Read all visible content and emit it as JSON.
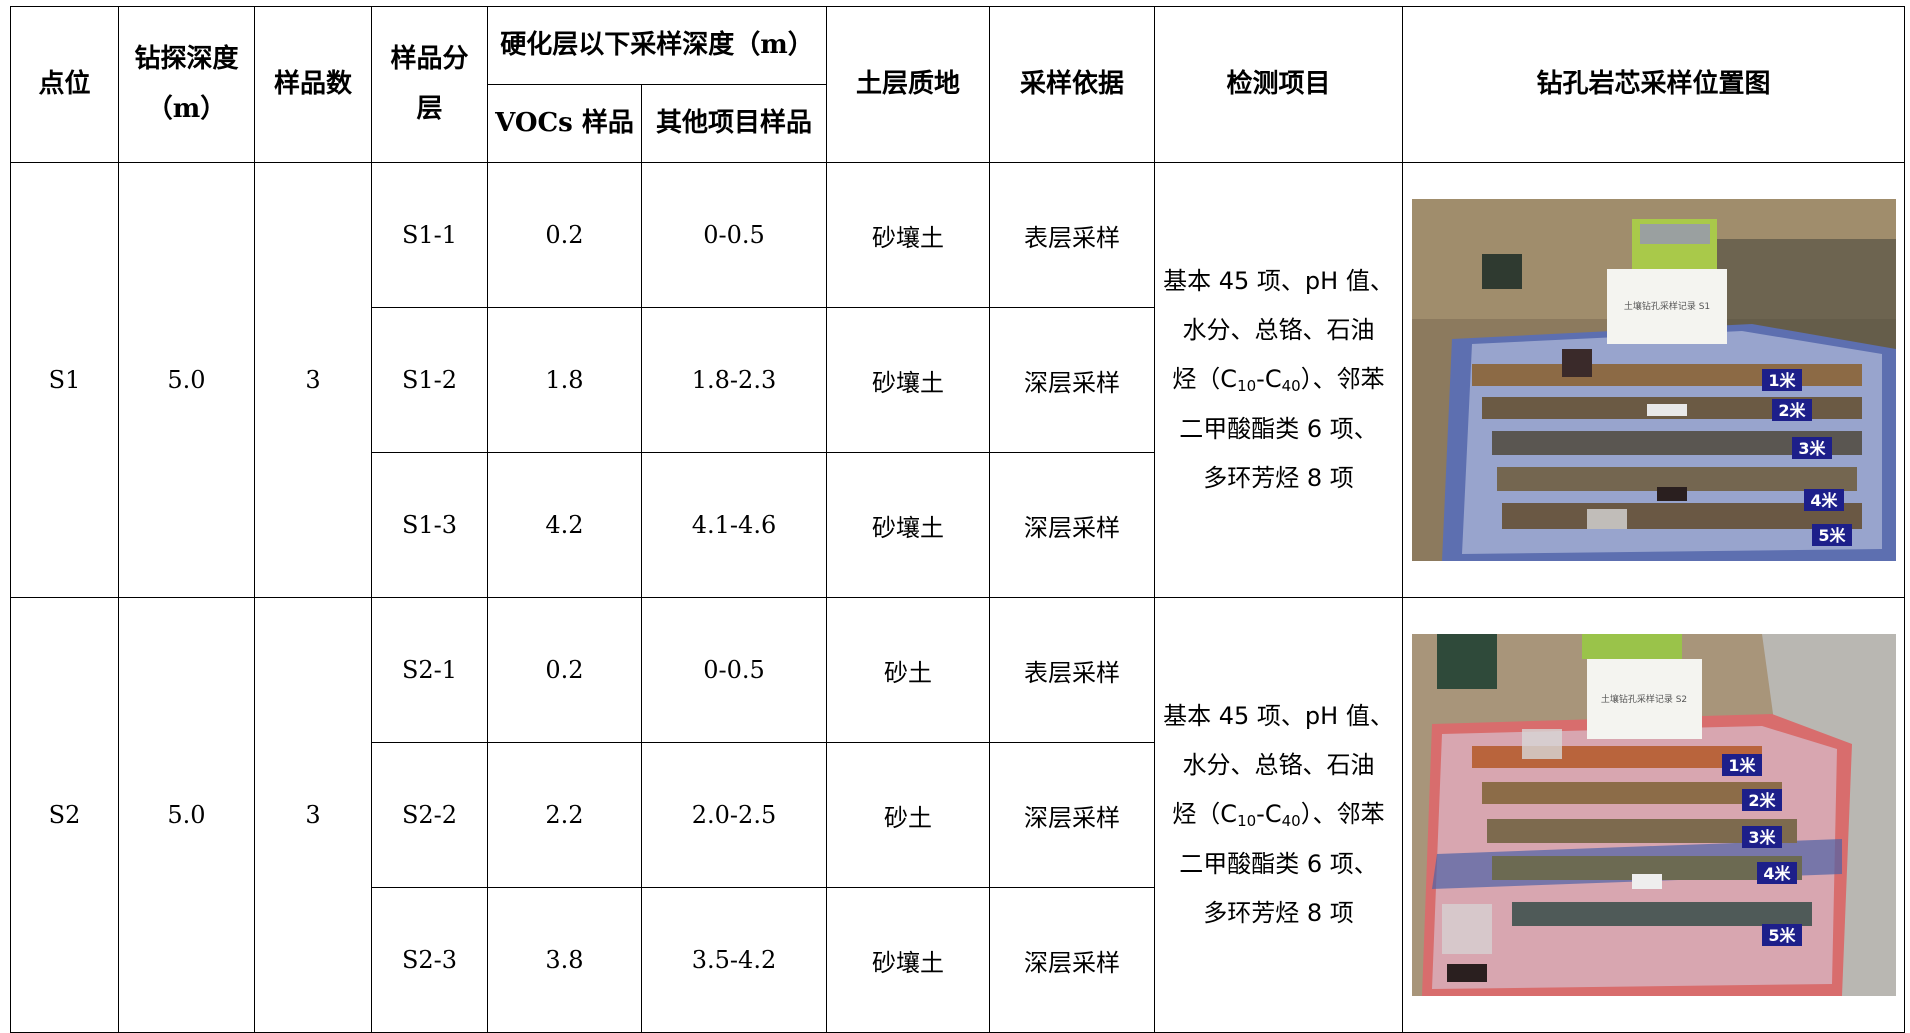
{
  "headers": {
    "point": "点位",
    "drill_depth": "钻探深度（m）",
    "drill_depth_line1": "钻探深度",
    "drill_depth_line2": "（m）",
    "sample_count": "样品数",
    "sample_layer_line1": "样品分",
    "sample_layer_line2": "层",
    "sampling_depth_group": "硬化层以下采样深度（m）",
    "vocs_sample": "VOCs 样品",
    "other_sample": "其他项目样品",
    "soil_texture": "土层质地",
    "sampling_basis": "采样依据",
    "test_items": "检测项目",
    "core_photo": "钻孔岩芯采样位置图"
  },
  "points": [
    {
      "point": "S1",
      "drill_depth": "5.0",
      "sample_count": "3",
      "test_items": {
        "line1": "基本 45 项、pH 值、",
        "line2": "水分、总铬、石油",
        "line3_pre": "烃（C",
        "line3_sub1": "10",
        "line3_mid": "-C",
        "line3_sub2": "40",
        "line3_post": "）、邻苯",
        "line4": "二甲酸酯类 6 项、",
        "line5": "多环芳烃 8 项"
      },
      "photo": {
        "board_text": "土壤钻孔采样记录 S1",
        "depth_tags": [
          "1米",
          "2米",
          "3米",
          "4米",
          "5米"
        ]
      },
      "samples": [
        {
          "id": "S1-1",
          "vocs": "0.2",
          "other": "0-0.5",
          "texture": "砂壤土",
          "basis": "表层采样"
        },
        {
          "id": "S1-2",
          "vocs": "1.8",
          "other": "1.8-2.3",
          "texture": "砂壤土",
          "basis": "深层采样"
        },
        {
          "id": "S1-3",
          "vocs": "4.2",
          "other": "4.1-4.6",
          "texture": "砂壤土",
          "basis": "深层采样"
        }
      ]
    },
    {
      "point": "S2",
      "drill_depth": "5.0",
      "sample_count": "3",
      "test_items": {
        "line1": "基本 45 项、pH 值、",
        "line2": "水分、总铬、石油",
        "line3_pre": "烃（C",
        "line3_sub1": "10",
        "line3_mid": "-C",
        "line3_sub2": "40",
        "line3_post": "）、邻苯",
        "line4": "二甲酸酯类 6 项、",
        "line5": "多环芳烃 8 项"
      },
      "photo": {
        "board_text": "土壤钻孔采样记录 S2",
        "depth_tags": [
          "1米",
          "2米",
          "3米",
          "4米",
          "5米"
        ]
      },
      "samples": [
        {
          "id": "S2-1",
          "vocs": "0.2",
          "other": "0-0.5",
          "texture": "砂土",
          "basis": "表层采样"
        },
        {
          "id": "S2-2",
          "vocs": "2.2",
          "other": "2.0-2.5",
          "texture": "砂土",
          "basis": "深层采样"
        },
        {
          "id": "S2-3",
          "vocs": "3.8",
          "other": "3.5-4.2",
          "texture": "砂壤土",
          "basis": "深层采样"
        }
      ]
    }
  ]
}
